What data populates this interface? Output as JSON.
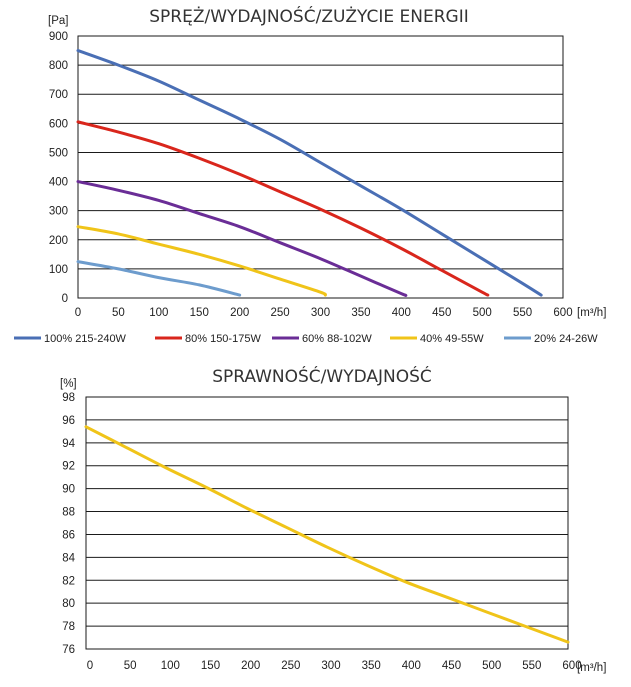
{
  "chart_data": [
    {
      "type": "line",
      "title": "SPRĘŻ/WYDAJNOŚĆ/ZUŻYCIE ENERGII",
      "ylabel": "[Pa]",
      "xlabel": "[m³/h]",
      "xlim": [
        0,
        600
      ],
      "ylim": [
        0,
        900
      ],
      "xticks": [
        0,
        50,
        100,
        150,
        200,
        250,
        300,
        350,
        400,
        450,
        500,
        550,
        600
      ],
      "yticks": [
        0,
        100,
        200,
        300,
        400,
        500,
        600,
        700,
        800,
        900
      ],
      "grid": "horizontal",
      "legend": "bottom",
      "series": [
        {
          "name": "100% 215-240W",
          "color": "#4a6fb5",
          "x": [
            0,
            50,
            100,
            150,
            200,
            250,
            300,
            350,
            400,
            450,
            500,
            550,
            573
          ],
          "y": [
            850,
            800,
            745,
            680,
            615,
            545,
            465,
            385,
            305,
            220,
            135,
            50,
            10
          ]
        },
        {
          "name": "80% 150-175W",
          "color": "#d9261c",
          "x": [
            0,
            50,
            100,
            150,
            200,
            250,
            300,
            350,
            400,
            450,
            500,
            507
          ],
          "y": [
            605,
            570,
            530,
            480,
            425,
            365,
            305,
            240,
            170,
            95,
            20,
            10
          ]
        },
        {
          "name": "60% 88-102W",
          "color": "#6a2d96",
          "x": [
            0,
            50,
            100,
            150,
            200,
            250,
            300,
            350,
            400,
            405
          ],
          "y": [
            400,
            370,
            335,
            290,
            245,
            190,
            135,
            75,
            15,
            10
          ]
        },
        {
          "name": "40% 49-55W",
          "color": "#f0c419",
          "x": [
            0,
            50,
            100,
            150,
            200,
            250,
            300,
            306
          ],
          "y": [
            245,
            220,
            185,
            150,
            110,
            65,
            20,
            10
          ]
        },
        {
          "name": "20% 24-26W",
          "color": "#6d9ccd",
          "x": [
            0,
            50,
            100,
            150,
            200
          ],
          "y": [
            125,
            100,
            70,
            45,
            10
          ]
        }
      ]
    },
    {
      "type": "line",
      "title": "SPRAWNOŚĆ/WYDAJNOŚĆ",
      "ylabel": "[%]",
      "xlabel": "[m³/h]",
      "xlim": [
        0,
        600
      ],
      "ylim": [
        76,
        98
      ],
      "xticks": [
        0,
        50,
        100,
        150,
        200,
        250,
        300,
        350,
        400,
        450,
        500,
        550,
        600
      ],
      "yticks": [
        76,
        78,
        80,
        82,
        84,
        86,
        88,
        90,
        92,
        94,
        96,
        98
      ],
      "grid": "horizontal",
      "series": [
        {
          "color": "#f0c419",
          "x": [
            0,
            50,
            100,
            150,
            200,
            250,
            300,
            350,
            400,
            450,
            500,
            550,
            600
          ],
          "y": [
            95.4,
            93.6,
            91.8,
            90.1,
            88.3,
            86.6,
            84.9,
            83.3,
            81.8,
            80.5,
            79.2,
            77.9,
            76.6
          ]
        }
      ]
    }
  ]
}
